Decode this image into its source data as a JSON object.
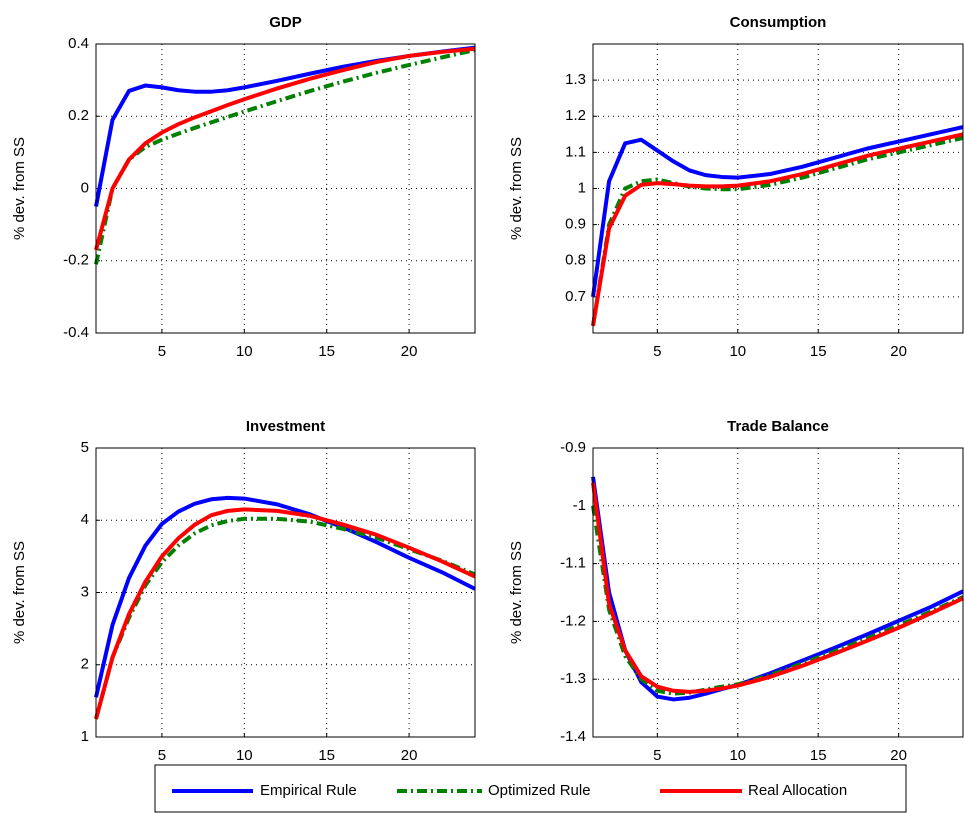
{
  "chart_data": [
    {
      "type": "line",
      "title": "GDP",
      "ylabel": "% dev. from SS",
      "x": [
        1,
        2,
        3,
        4,
        5,
        6,
        7,
        8,
        9,
        10,
        12,
        14,
        16,
        18,
        20,
        22,
        24
      ],
      "xlim": [
        1,
        24
      ],
      "xticks": [
        5,
        10,
        15,
        20
      ],
      "ylim": [
        -0.4,
        0.4
      ],
      "yticks": [
        -0.4,
        -0.2,
        0,
        0.2,
        0.4
      ],
      "grid": true,
      "series": [
        {
          "name": "Empirical Rule",
          "color": "#0000ff",
          "style": "solid",
          "values": [
            -0.05,
            0.19,
            0.27,
            0.285,
            0.28,
            0.272,
            0.268,
            0.268,
            0.272,
            0.28,
            0.298,
            0.318,
            0.337,
            0.353,
            0.367,
            0.379,
            0.39
          ]
        },
        {
          "name": "Optimized Rule",
          "color": "#008000",
          "style": "dashdot",
          "values": [
            -0.21,
            0.0,
            0.08,
            0.115,
            0.135,
            0.152,
            0.168,
            0.183,
            0.198,
            0.213,
            0.242,
            0.27,
            0.296,
            0.32,
            0.342,
            0.363,
            0.383
          ]
        },
        {
          "name": "Real Allocation",
          "color": "#ff0000",
          "style": "solid",
          "values": [
            -0.17,
            0.0,
            0.08,
            0.125,
            0.155,
            0.178,
            0.197,
            0.214,
            0.231,
            0.247,
            0.277,
            0.304,
            0.328,
            0.35,
            0.367,
            0.378,
            0.387
          ]
        }
      ]
    },
    {
      "type": "line",
      "title": "Consumption",
      "ylabel": "% dev. from SS",
      "x": [
        1,
        2,
        3,
        4,
        5,
        6,
        7,
        8,
        9,
        10,
        12,
        14,
        16,
        18,
        20,
        22,
        24
      ],
      "xlim": [
        1,
        24
      ],
      "xticks": [
        5,
        10,
        15,
        20
      ],
      "ylim": [
        0.6,
        1.4
      ],
      "yticks": [
        0.7,
        0.8,
        0.9,
        1,
        1.1,
        1.2,
        1.3
      ],
      "grid": true,
      "series": [
        {
          "name": "Empirical Rule",
          "color": "#0000ff",
          "style": "solid",
          "values": [
            0.7,
            1.02,
            1.125,
            1.135,
            1.105,
            1.075,
            1.05,
            1.037,
            1.032,
            1.03,
            1.04,
            1.06,
            1.085,
            1.11,
            1.13,
            1.15,
            1.17
          ]
        },
        {
          "name": "Optimized Rule",
          "color": "#008000",
          "style": "dashdot",
          "values": [
            0.62,
            0.9,
            1.0,
            1.02,
            1.025,
            1.015,
            1.005,
            1.0,
            0.998,
            0.998,
            1.01,
            1.03,
            1.055,
            1.08,
            1.1,
            1.12,
            1.14
          ]
        },
        {
          "name": "Real Allocation",
          "color": "#ff0000",
          "style": "solid",
          "values": [
            0.62,
            0.89,
            0.98,
            1.01,
            1.015,
            1.012,
            1.008,
            1.006,
            1.006,
            1.008,
            1.02,
            1.04,
            1.065,
            1.09,
            1.11,
            1.13,
            1.15
          ]
        }
      ]
    },
    {
      "type": "line",
      "title": "Investment",
      "ylabel": "% dev. from SS",
      "x": [
        1,
        2,
        3,
        4,
        5,
        6,
        7,
        8,
        9,
        10,
        12,
        14,
        16,
        18,
        20,
        22,
        24
      ],
      "xlim": [
        1,
        24
      ],
      "xticks": [
        5,
        10,
        15,
        20
      ],
      "ylim": [
        1,
        5
      ],
      "yticks": [
        1,
        2,
        3,
        4,
        5
      ],
      "grid": true,
      "series": [
        {
          "name": "Empirical Rule",
          "color": "#0000ff",
          "style": "solid",
          "values": [
            1.55,
            2.55,
            3.2,
            3.65,
            3.95,
            4.12,
            4.23,
            4.29,
            4.31,
            4.3,
            4.22,
            4.08,
            3.9,
            3.7,
            3.48,
            3.28,
            3.05
          ]
        },
        {
          "name": "Optimized Rule",
          "color": "#008000",
          "style": "dashdot",
          "values": [
            1.25,
            2.1,
            2.65,
            3.1,
            3.42,
            3.65,
            3.82,
            3.93,
            3.99,
            4.02,
            4.02,
            3.98,
            3.88,
            3.76,
            3.6,
            3.44,
            3.25
          ]
        },
        {
          "name": "Real Allocation",
          "color": "#ff0000",
          "style": "solid",
          "values": [
            1.25,
            2.1,
            2.7,
            3.15,
            3.5,
            3.75,
            3.94,
            4.07,
            4.13,
            4.15,
            4.13,
            4.06,
            3.94,
            3.8,
            3.62,
            3.43,
            3.22
          ]
        }
      ]
    },
    {
      "type": "line",
      "title": "Trade Balance",
      "ylabel": "% dev. from SS",
      "x": [
        1,
        2,
        3,
        4,
        5,
        6,
        7,
        8,
        9,
        10,
        12,
        14,
        16,
        18,
        20,
        22,
        24
      ],
      "xlim": [
        1,
        24
      ],
      "xticks": [
        5,
        10,
        15,
        20
      ],
      "ylim": [
        -1.4,
        -0.9
      ],
      "yticks": [
        -1.4,
        -1.3,
        -1.2,
        -1.1,
        -1,
        -0.9
      ],
      "grid": true,
      "series": [
        {
          "name": "Empirical Rule",
          "color": "#0000ff",
          "style": "solid",
          "values": [
            -0.95,
            -1.15,
            -1.25,
            -1.305,
            -1.33,
            -1.335,
            -1.332,
            -1.325,
            -1.317,
            -1.31,
            -1.29,
            -1.268,
            -1.246,
            -1.223,
            -1.199,
            -1.175,
            -1.148
          ]
        },
        {
          "name": "Optimized Rule",
          "color": "#008000",
          "style": "dashdot",
          "values": [
            -1.0,
            -1.18,
            -1.26,
            -1.3,
            -1.32,
            -1.325,
            -1.323,
            -1.318,
            -1.313,
            -1.309,
            -1.293,
            -1.273,
            -1.252,
            -1.23,
            -1.207,
            -1.183,
            -1.158
          ]
        },
        {
          "name": "Real Allocation",
          "color": "#ff0000",
          "style": "solid",
          "values": [
            -0.96,
            -1.17,
            -1.25,
            -1.295,
            -1.313,
            -1.32,
            -1.322,
            -1.32,
            -1.316,
            -1.311,
            -1.296,
            -1.277,
            -1.256,
            -1.234,
            -1.211,
            -1.186,
            -1.16
          ]
        }
      ]
    }
  ]
}
